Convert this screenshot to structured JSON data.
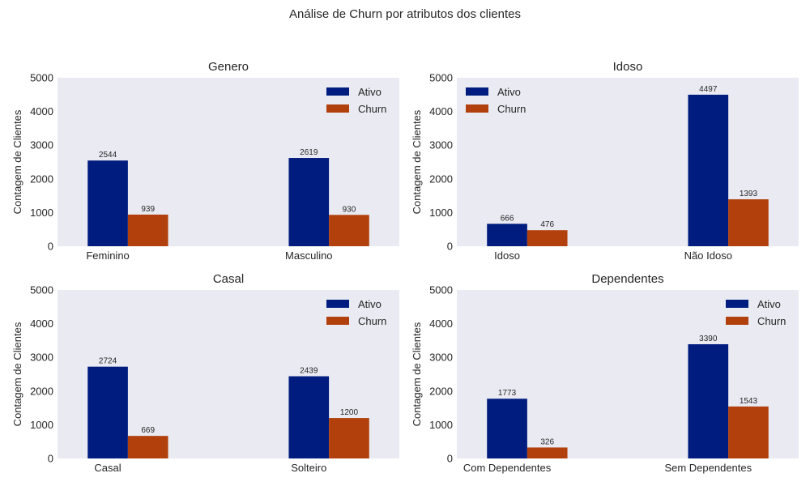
{
  "figure": {
    "suptitle": "Análise de Churn por atributos dos clientes"
  },
  "style": {
    "ativo_color": "#001c7f",
    "churn_color": "#b1400d",
    "plot_background": "#eaeaf2"
  },
  "chart_data": [
    {
      "type": "bar",
      "title": "Genero",
      "ylabel": "Contagem de Clientes",
      "xlabel": "",
      "ylim": [
        0,
        5000
      ],
      "yticks": [
        0,
        1000,
        2000,
        3000,
        4000,
        5000
      ],
      "categories": [
        "Feminino",
        "Masculino"
      ],
      "series": [
        {
          "name": "Ativo",
          "values": [
            2544,
            2619
          ]
        },
        {
          "name": "Churn",
          "values": [
            939,
            930
          ]
        }
      ],
      "legend": "top-right",
      "grid": false
    },
    {
      "type": "bar",
      "title": "Idoso",
      "ylabel": "Contagem de Clientes",
      "xlabel": "",
      "ylim": [
        0,
        5000
      ],
      "yticks": [
        0,
        1000,
        2000,
        3000,
        4000,
        5000
      ],
      "categories": [
        "Idoso",
        "Não Idoso"
      ],
      "series": [
        {
          "name": "Ativo",
          "values": [
            666,
            4497
          ]
        },
        {
          "name": "Churn",
          "values": [
            476,
            1393
          ]
        }
      ],
      "legend": "top-left",
      "grid": false
    },
    {
      "type": "bar",
      "title": "Casal",
      "ylabel": "Contagem de Clientes",
      "xlabel": "",
      "ylim": [
        0,
        5000
      ],
      "yticks": [
        0,
        1000,
        2000,
        3000,
        4000,
        5000
      ],
      "categories": [
        "Casal",
        "Solteiro"
      ],
      "series": [
        {
          "name": "Ativo",
          "values": [
            2724,
            2439
          ]
        },
        {
          "name": "Churn",
          "values": [
            669,
            1200
          ]
        }
      ],
      "legend": "top-right",
      "grid": false
    },
    {
      "type": "bar",
      "title": "Dependentes",
      "ylabel": "Contagem de Clientes",
      "xlabel": "",
      "ylim": [
        0,
        5000
      ],
      "yticks": [
        0,
        1000,
        2000,
        3000,
        4000,
        5000
      ],
      "categories": [
        "Com Dependentes",
        "Sem Dependentes"
      ],
      "series": [
        {
          "name": "Ativo",
          "values": [
            1773,
            3390
          ]
        },
        {
          "name": "Churn",
          "values": [
            326,
            1543
          ]
        }
      ],
      "legend": "top-right",
      "grid": false
    }
  ]
}
